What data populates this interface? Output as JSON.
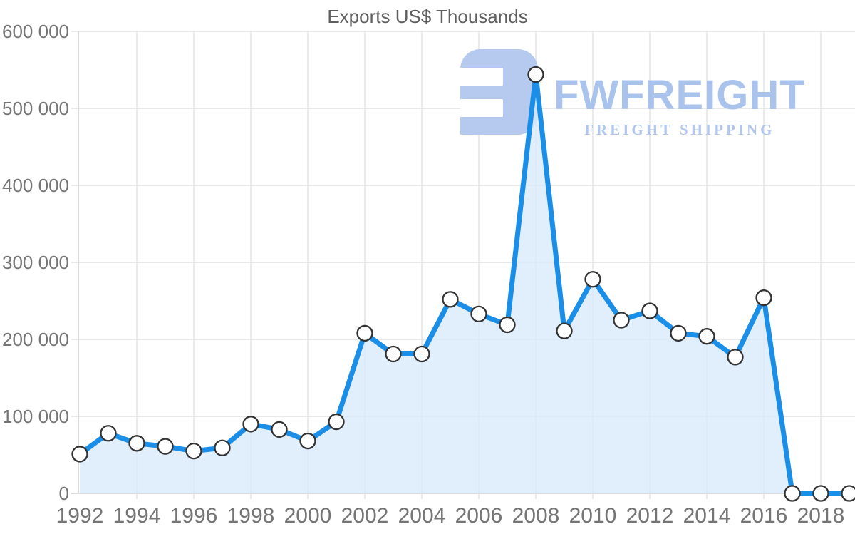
{
  "chart_data": {
    "type": "area",
    "title": "Exports US$ Thousands",
    "xlabel": "",
    "ylabel": "",
    "x": [
      1992,
      1993,
      1994,
      1995,
      1996,
      1997,
      1998,
      1999,
      2000,
      2001,
      2002,
      2003,
      2004,
      2005,
      2006,
      2007,
      2008,
      2009,
      2010,
      2011,
      2012,
      2013,
      2014,
      2015,
      2016,
      2017,
      2018,
      2019
    ],
    "values": [
      51000,
      78000,
      65000,
      61000,
      55000,
      59000,
      90000,
      83000,
      68000,
      93000,
      208000,
      181000,
      181000,
      252000,
      233000,
      219000,
      544000,
      211000,
      278000,
      225000,
      237000,
      208000,
      204000,
      177000,
      254000,
      0,
      0,
      0
    ],
    "ylim": [
      0,
      600000
    ],
    "grid": true,
    "legend_position": "none",
    "marker": "circle",
    "yticks": [
      {
        "value": 0,
        "label": "0"
      },
      {
        "value": 100000,
        "label": "100 000"
      },
      {
        "value": 200000,
        "label": "200 000"
      },
      {
        "value": 300000,
        "label": "300 000"
      },
      {
        "value": 400000,
        "label": "400 000"
      },
      {
        "value": 500000,
        "label": "500 000"
      },
      {
        "value": 600000,
        "label": "600 000"
      }
    ],
    "xticks": [
      {
        "value": 1992,
        "label": "1992"
      },
      {
        "value": 1994,
        "label": "1994"
      },
      {
        "value": 1996,
        "label": "1996"
      },
      {
        "value": 1998,
        "label": "1998"
      },
      {
        "value": 2000,
        "label": "2000"
      },
      {
        "value": 2002,
        "label": "2002"
      },
      {
        "value": 2004,
        "label": "2004"
      },
      {
        "value": 2006,
        "label": "2006"
      },
      {
        "value": 2008,
        "label": "2008"
      },
      {
        "value": 2010,
        "label": "2010"
      },
      {
        "value": 2012,
        "label": "2012"
      },
      {
        "value": 2014,
        "label": "2014"
      },
      {
        "value": 2016,
        "label": "2016"
      },
      {
        "value": 2018,
        "label": "2018"
      }
    ],
    "colors": {
      "line": "#1b8ee8",
      "fill": "#d9eafb",
      "marker_fill": "#ffffff",
      "marker_stroke": "#333333",
      "grid": "#e2e2e2",
      "axis": "#d2d2d2",
      "tick_label": "#757575",
      "title": "#5f5f5f"
    }
  },
  "watermark": {
    "brand": "FWFREIGHT",
    "tagline": "FREIGHT SHIPPING",
    "logo_icon": "fwfreight-logo-mark",
    "colors": {
      "mark": "#b3c8f0",
      "brand": "#a6c0ed",
      "tagline": "#aec5f0"
    }
  }
}
